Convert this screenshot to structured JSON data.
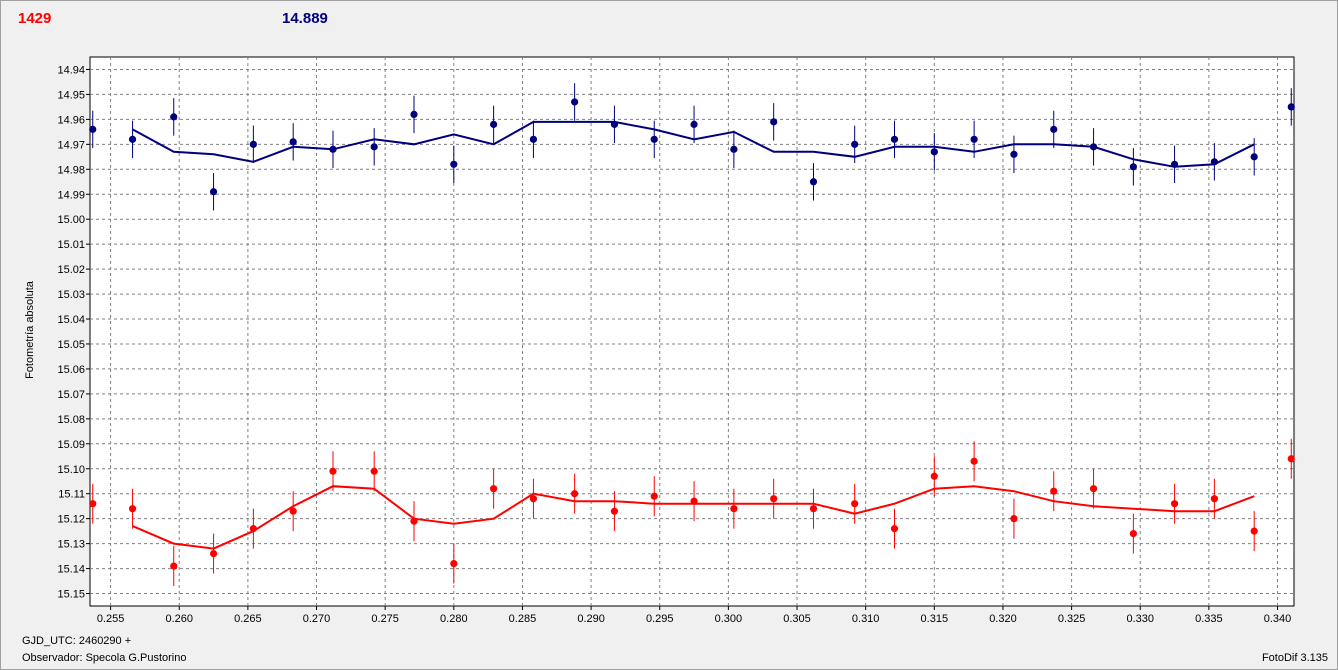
{
  "header": {
    "star_id": "1429",
    "magnitude": "14.889"
  },
  "footer": {
    "gjd": "GJD_UTC: 2460290 +",
    "observer": "Observador: Specola G.Pustorino",
    "software": "FotoDif 3.135"
  },
  "colors": {
    "series_red": "#ff0000",
    "series_blue": "#00007f",
    "grid": "#808080",
    "plot_bg": "#ffffff"
  },
  "chart_data": {
    "type": "scatter",
    "ylabel": "Fotometría absoluta",
    "xlabel": "",
    "xlim": [
      0.2535,
      0.3412
    ],
    "ylim": [
      15.155,
      14.935
    ],
    "y_inverted": true,
    "grid": true,
    "xticks": [
      "0.255",
      "0.260",
      "0.265",
      "0.270",
      "0.275",
      "0.280",
      "0.285",
      "0.290",
      "0.295",
      "0.300",
      "0.305",
      "0.310",
      "0.315",
      "0.320",
      "0.325",
      "0.330",
      "0.335",
      "0.340"
    ],
    "yticks": [
      "14.94",
      "14.95",
      "14.96",
      "14.97",
      "14.98",
      "14.99",
      "15.00",
      "15.01",
      "15.02",
      "15.03",
      "15.04",
      "15.05",
      "15.06",
      "15.07",
      "15.08",
      "15.09",
      "15.10",
      "15.11",
      "15.12",
      "15.13",
      "15.14",
      "15.15"
    ],
    "series": [
      {
        "color": "#00007f",
        "x": [
          0.2537,
          0.2566,
          0.2596,
          0.2625,
          0.2654,
          0.2683,
          0.2712,
          0.2742,
          0.2771,
          0.28,
          0.2829,
          0.2858,
          0.2888,
          0.2917,
          0.2946,
          0.2975,
          0.3004,
          0.3033,
          0.3062,
          0.3092,
          0.3121,
          0.315,
          0.3179,
          0.3208,
          0.3237,
          0.3266,
          0.3295,
          0.3325,
          0.3354,
          0.3383,
          0.341
        ],
        "y": [
          14.964,
          14.968,
          14.959,
          14.989,
          14.97,
          14.969,
          14.972,
          14.971,
          14.958,
          14.978,
          14.962,
          14.968,
          14.953,
          14.962,
          14.968,
          14.962,
          14.972,
          14.961,
          14.985,
          14.97,
          14.968,
          14.973,
          14.968,
          14.974,
          14.964,
          14.971,
          14.979,
          14.978,
          14.977,
          14.975,
          14.955
        ],
        "err": [
          0.0075,
          0.0075,
          0.0075,
          0.0075,
          0.0075,
          0.0075,
          0.0075,
          0.0075,
          0.0075,
          0.0075,
          0.0075,
          0.0075,
          0.0075,
          0.0075,
          0.0075,
          0.0075,
          0.0075,
          0.0075,
          0.0075,
          0.0075,
          0.0075,
          0.0075,
          0.0075,
          0.0075,
          0.0075,
          0.0075,
          0.0075,
          0.0075,
          0.0075,
          0.0075,
          0.0075
        ],
        "smooth_x": [
          0.2566,
          0.2596,
          0.2625,
          0.2654,
          0.2683,
          0.2712,
          0.2742,
          0.2771,
          0.28,
          0.2829,
          0.2858,
          0.2888,
          0.2917,
          0.2946,
          0.2975,
          0.3004,
          0.3033,
          0.3062,
          0.3092,
          0.3121,
          0.315,
          0.3179,
          0.3208,
          0.3237,
          0.3266,
          0.3295,
          0.3325,
          0.3354,
          0.3383
        ],
        "smooth_y": [
          14.964,
          14.973,
          14.974,
          14.977,
          14.971,
          14.972,
          14.968,
          14.97,
          14.966,
          14.97,
          14.961,
          14.961,
          14.961,
          14.964,
          14.968,
          14.965,
          14.973,
          14.973,
          14.975,
          14.971,
          14.971,
          14.973,
          14.97,
          14.97,
          14.971,
          14.976,
          14.979,
          14.978,
          14.97
        ]
      },
      {
        "color": "#ff0000",
        "x": [
          0.2537,
          0.2566,
          0.2596,
          0.2625,
          0.2654,
          0.2683,
          0.2712,
          0.2742,
          0.2771,
          0.28,
          0.2829,
          0.2858,
          0.2888,
          0.2917,
          0.2946,
          0.2975,
          0.3004,
          0.3033,
          0.3062,
          0.3092,
          0.3121,
          0.315,
          0.3179,
          0.3208,
          0.3237,
          0.3266,
          0.3295,
          0.3325,
          0.3354,
          0.3383,
          0.341
        ],
        "y": [
          15.114,
          15.116,
          15.139,
          15.134,
          15.124,
          15.117,
          15.101,
          15.101,
          15.121,
          15.138,
          15.108,
          15.112,
          15.11,
          15.117,
          15.111,
          15.113,
          15.116,
          15.112,
          15.116,
          15.114,
          15.124,
          15.103,
          15.097,
          15.12,
          15.109,
          15.108,
          15.126,
          15.114,
          15.112,
          15.125,
          15.096
        ],
        "err": [
          0.008,
          0.008,
          0.008,
          0.008,
          0.008,
          0.008,
          0.008,
          0.008,
          0.008,
          0.008,
          0.008,
          0.008,
          0.008,
          0.008,
          0.008,
          0.008,
          0.008,
          0.008,
          0.008,
          0.008,
          0.008,
          0.008,
          0.008,
          0.008,
          0.008,
          0.008,
          0.008,
          0.008,
          0.008,
          0.008,
          0.008
        ],
        "smooth_x": [
          0.2566,
          0.2596,
          0.2625,
          0.2654,
          0.2683,
          0.2712,
          0.2742,
          0.2771,
          0.28,
          0.2829,
          0.2858,
          0.2888,
          0.2917,
          0.2946,
          0.2975,
          0.3004,
          0.3033,
          0.3062,
          0.3092,
          0.3121,
          0.315,
          0.3179,
          0.3208,
          0.3237,
          0.3266,
          0.3295,
          0.3325,
          0.3354,
          0.3383
        ],
        "smooth_y": [
          15.123,
          15.13,
          15.132,
          15.125,
          15.115,
          15.107,
          15.108,
          15.12,
          15.122,
          15.12,
          15.11,
          15.113,
          15.113,
          15.114,
          15.114,
          15.114,
          15.114,
          15.114,
          15.118,
          15.114,
          15.108,
          15.107,
          15.109,
          15.113,
          15.115,
          15.116,
          15.117,
          15.117,
          15.111
        ]
      }
    ]
  }
}
